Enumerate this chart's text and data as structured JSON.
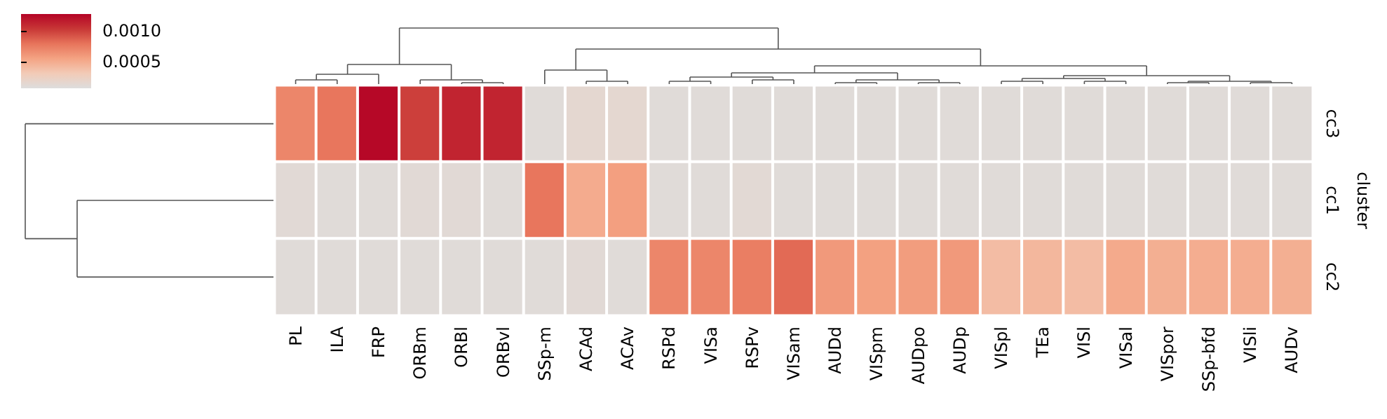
{
  "chart_data": {
    "type": "heatmap",
    "ylabel": "cluster",
    "categories": [
      "PL",
      "ILA",
      "FRP",
      "ORBm",
      "ORBl",
      "ORBvl",
      "SSp-m",
      "ACAd",
      "ACAv",
      "RSPd",
      "VISa",
      "RSPv",
      "VISam",
      "AUDd",
      "VISpm",
      "AUDpo",
      "AUDp",
      "VISpl",
      "TEa",
      "VISl",
      "VISal",
      "VISpor",
      "SSp-bfd",
      "VISli",
      "AUDv"
    ],
    "y_categories": [
      "cc3",
      "cc1",
      "cc2"
    ],
    "cells": [
      [
        0.0007,
        0.00078,
        0.00125,
        0.001,
        0.00112,
        0.00112,
        0.0001,
        0.00015,
        0.00015,
        0.0001,
        0.0001,
        0.0001,
        0.0001,
        0.0001,
        0.0001,
        0.0001,
        0.0001,
        0.0001,
        0.0001,
        0.0001,
        0.0001,
        0.0001,
        0.0001,
        0.0001,
        0.0001
      ],
      [
        0.00012,
        0.0001,
        0.0001,
        0.00012,
        0.00012,
        0.0001,
        0.00078,
        0.0005,
        0.00057,
        0.0001,
        0.0001,
        0.00013,
        0.0001,
        0.0001,
        0.0001,
        0.0001,
        0.0001,
        0.0001,
        0.0001,
        0.0001,
        0.0001,
        0.0001,
        0.0001,
        0.0001,
        0.0001
      ],
      [
        0.0001,
        0.0001,
        0.0001,
        0.0001,
        0.0001,
        0.0001,
        0.0001,
        0.00012,
        0.0001,
        0.0007,
        0.0007,
        0.00074,
        0.00083,
        0.0006,
        0.00056,
        0.00058,
        0.0006,
        0.0004,
        0.00043,
        0.0004,
        0.00051,
        0.00048,
        0.00049,
        0.00049,
        0.00048
      ]
    ],
    "clim": [
      7e-05,
      0.00127
    ],
    "cticks": [
      0.0005,
      {
        "value": 0.001,
        "label": "0.0010"
      }
    ]
  }
}
